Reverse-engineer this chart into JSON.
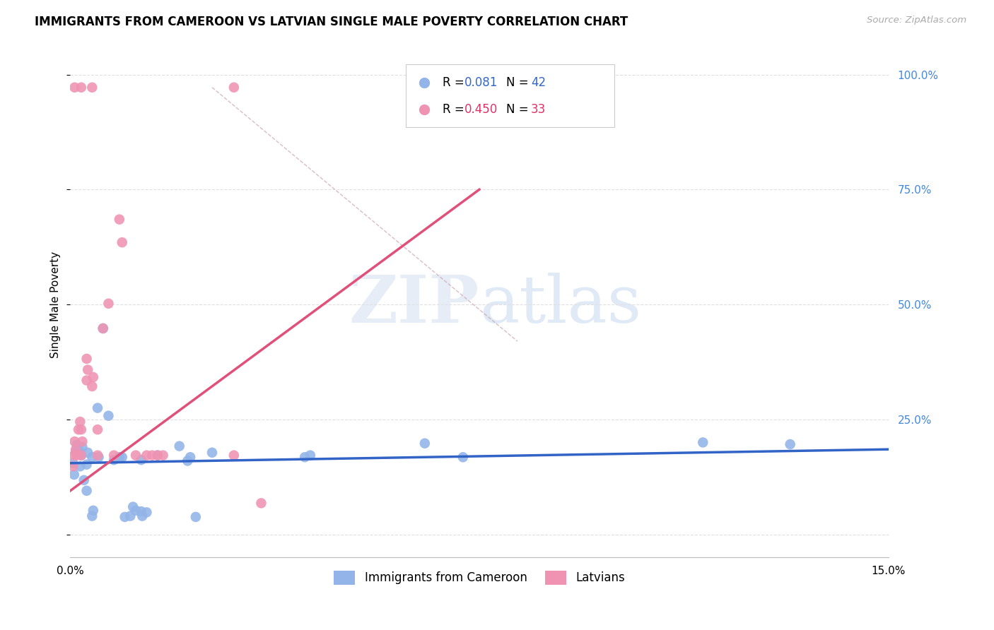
{
  "title": "IMMIGRANTS FROM CAMEROON VS LATVIAN SINGLE MALE POVERTY CORRELATION CHART",
  "source": "Source: ZipAtlas.com",
  "ylabel": "Single Male Poverty",
  "xlim": [
    0.0,
    0.15
  ],
  "ylim": [
    -0.05,
    1.05
  ],
  "color_blue": "#92b4e8",
  "color_pink": "#f093b2",
  "line_blue": "#3264c8",
  "line_pink": "#e0507a",
  "line_diag_color": "#cca0a8",
  "watermark_text": "ZIPatlas",
  "blue_points": [
    [
      0.0005,
      0.155
    ],
    [
      0.0007,
      0.13
    ],
    [
      0.001,
      0.18
    ],
    [
      0.0012,
      0.195
    ],
    [
      0.0015,
      0.185
    ],
    [
      0.0018,
      0.148
    ],
    [
      0.002,
      0.172
    ],
    [
      0.0022,
      0.19
    ],
    [
      0.0025,
      0.118
    ],
    [
      0.003,
      0.152
    ],
    [
      0.0032,
      0.178
    ],
    [
      0.003,
      0.095
    ],
    [
      0.004,
      0.04
    ],
    [
      0.0042,
      0.052
    ],
    [
      0.004,
      0.168
    ],
    [
      0.005,
      0.275
    ],
    [
      0.0052,
      0.168
    ],
    [
      0.006,
      0.448
    ],
    [
      0.007,
      0.258
    ],
    [
      0.008,
      0.162
    ],
    [
      0.009,
      0.168
    ],
    [
      0.0095,
      0.168
    ],
    [
      0.01,
      0.038
    ],
    [
      0.011,
      0.04
    ],
    [
      0.012,
      0.052
    ],
    [
      0.0115,
      0.06
    ],
    [
      0.013,
      0.162
    ],
    [
      0.0132,
      0.04
    ],
    [
      0.013,
      0.05
    ],
    [
      0.014,
      0.048
    ],
    [
      0.016,
      0.172
    ],
    [
      0.02,
      0.192
    ],
    [
      0.022,
      0.168
    ],
    [
      0.0215,
      0.16
    ],
    [
      0.023,
      0.038
    ],
    [
      0.026,
      0.178
    ],
    [
      0.043,
      0.168
    ],
    [
      0.044,
      0.172
    ],
    [
      0.065,
      0.198
    ],
    [
      0.072,
      0.168
    ],
    [
      0.116,
      0.2
    ],
    [
      0.132,
      0.196
    ]
  ],
  "pink_points": [
    [
      0.0005,
      0.148
    ],
    [
      0.0007,
      0.172
    ],
    [
      0.001,
      0.185
    ],
    [
      0.0008,
      0.202
    ],
    [
      0.0012,
      0.172
    ],
    [
      0.0015,
      0.228
    ],
    [
      0.0018,
      0.245
    ],
    [
      0.002,
      0.172
    ],
    [
      0.0022,
      0.202
    ],
    [
      0.002,
      0.228
    ],
    [
      0.003,
      0.335
    ],
    [
      0.0032,
      0.358
    ],
    [
      0.003,
      0.382
    ],
    [
      0.004,
      0.322
    ],
    [
      0.0042,
      0.342
    ],
    [
      0.005,
      0.172
    ],
    [
      0.005,
      0.228
    ],
    [
      0.006,
      0.448
    ],
    [
      0.007,
      0.502
    ],
    [
      0.008,
      0.172
    ],
    [
      0.009,
      0.685
    ],
    [
      0.0095,
      0.635
    ],
    [
      0.012,
      0.172
    ],
    [
      0.014,
      0.172
    ],
    [
      0.015,
      0.172
    ],
    [
      0.016,
      0.172
    ],
    [
      0.017,
      0.172
    ],
    [
      0.03,
      0.172
    ],
    [
      0.035,
      0.068
    ],
    [
      0.0008,
      0.972
    ],
    [
      0.002,
      0.972
    ],
    [
      0.004,
      0.972
    ],
    [
      0.03,
      0.972
    ]
  ],
  "blue_line_x": [
    0.0,
    0.15
  ],
  "blue_line_y": [
    0.155,
    0.185
  ],
  "pink_line_x": [
    0.0,
    0.075
  ],
  "pink_line_y": [
    0.095,
    0.75
  ],
  "diag_line_x": [
    0.026,
    0.082
  ],
  "diag_line_y": [
    0.972,
    0.42
  ],
  "ytick_positions": [
    0.0,
    0.25,
    0.5,
    0.75,
    1.0
  ],
  "ytick_labels_right": [
    "",
    "25.0%",
    "50.0%",
    "75.0%",
    "100.0%"
  ],
  "xtick_positions": [
    0.0,
    0.03,
    0.06,
    0.09,
    0.12,
    0.15
  ],
  "xtick_labels": [
    "0.0%",
    "",
    "",
    "",
    "",
    "15.0%"
  ]
}
